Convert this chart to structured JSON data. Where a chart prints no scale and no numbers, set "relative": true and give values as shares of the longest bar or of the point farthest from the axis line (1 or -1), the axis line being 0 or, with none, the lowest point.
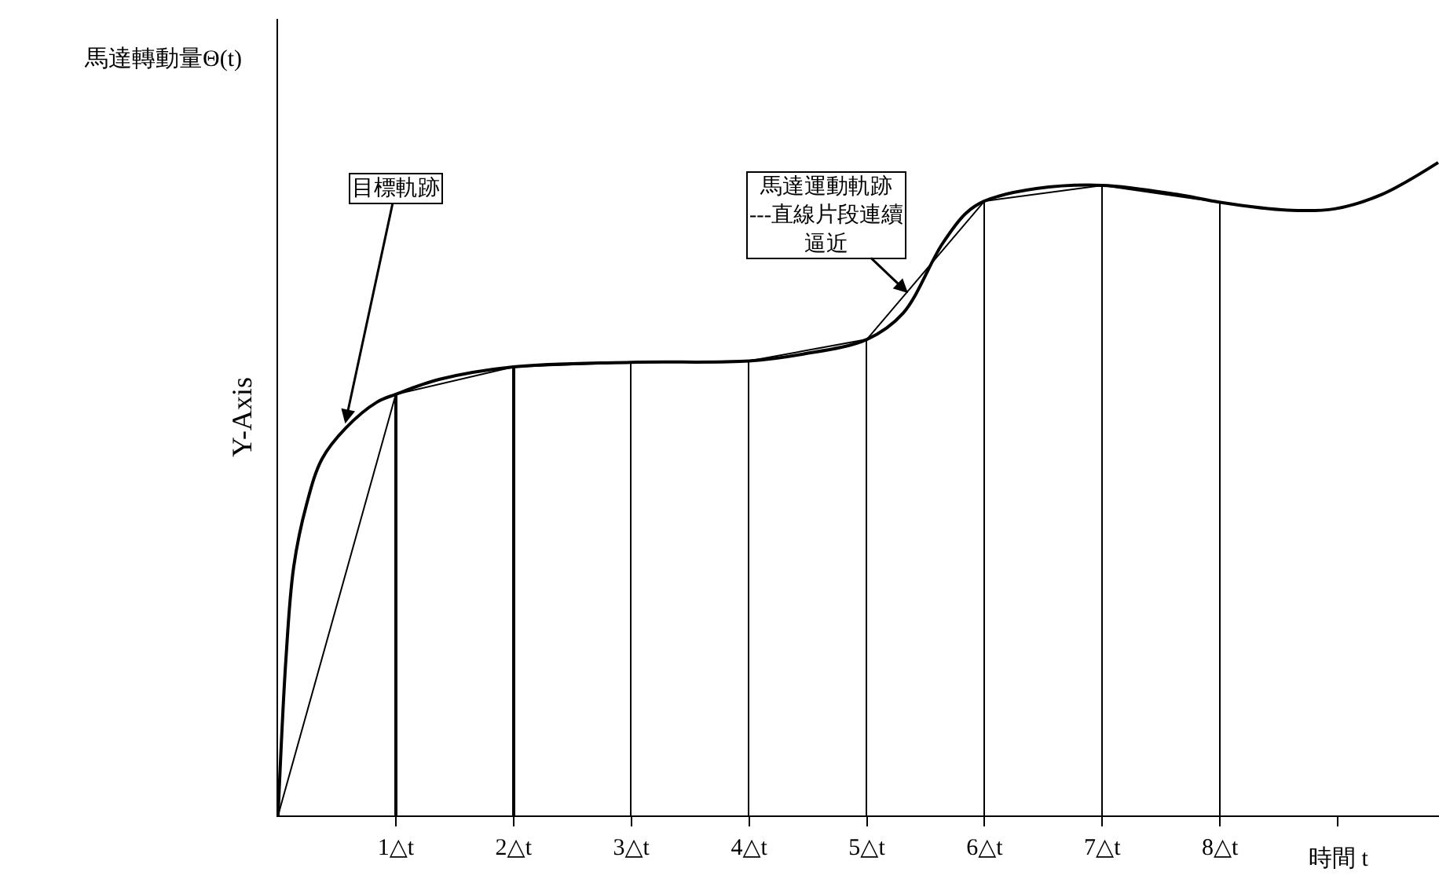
{
  "chart_data": {
    "type": "line",
    "relative": true,
    "xlabel": "時間 t",
    "ylabel": "Y-Axis",
    "xlim": [
      0,
      9.86
    ],
    "xticks": [
      {
        "value": 1,
        "label": "1△t"
      },
      {
        "value": 2,
        "label": "2△t"
      },
      {
        "value": 3,
        "label": "3△t"
      },
      {
        "value": 4,
        "label": "4△t"
      },
      {
        "value": 5,
        "label": "5△t"
      },
      {
        "value": 6,
        "label": "6△t"
      },
      {
        "value": 7,
        "label": "7△t"
      },
      {
        "value": 8,
        "label": "8△t"
      },
      {
        "value": 9,
        "label": null
      }
    ],
    "series": [
      {
        "color": "#000000",
        "x": [
          0,
          0.067,
          0.133,
          0.24,
          0.373,
          0.573,
          0.84,
          1,
          1.373,
          2,
          3,
          4,
          4.44,
          5,
          5.307,
          5.64,
          5.84,
          6,
          6.44,
          7,
          7.64,
          8,
          8.573,
          8.973,
          9.373,
          9.853
        ],
        "values": [
          0,
          0.24,
          0.381,
          0.475,
          0.546,
          0.593,
          0.633,
          0.645,
          0.668,
          0.687,
          0.694,
          0.696,
          0.706,
          0.729,
          0.769,
          0.875,
          0.922,
          0.941,
          0.96,
          0.965,
          0.951,
          0.939,
          0.927,
          0.929,
          0.951,
          1
        ]
      },
      {
        "color": "#000000",
        "x": [
          0,
          1,
          2,
          3,
          4,
          5,
          6,
          7,
          8
        ],
        "values": [
          0,
          0.645,
          0.687,
          0.694,
          0.696,
          0.729,
          0.941,
          0.965,
          0.939
        ]
      },
      {
        "type": "bar",
        "color": "#000000",
        "x": [
          1,
          2,
          3,
          4,
          5,
          6,
          7,
          8
        ],
        "values": [
          0.645,
          0.687,
          0.694,
          0.696,
          0.729,
          0.941,
          0.965,
          0.939
        ]
      }
    ],
    "annotations": [
      "馬達轉動量Θ(t)",
      "目標軌跡",
      "馬達運動軌跡---直線片段連續逼近"
    ],
    "marker": "none",
    "line_style": "solid"
  }
}
